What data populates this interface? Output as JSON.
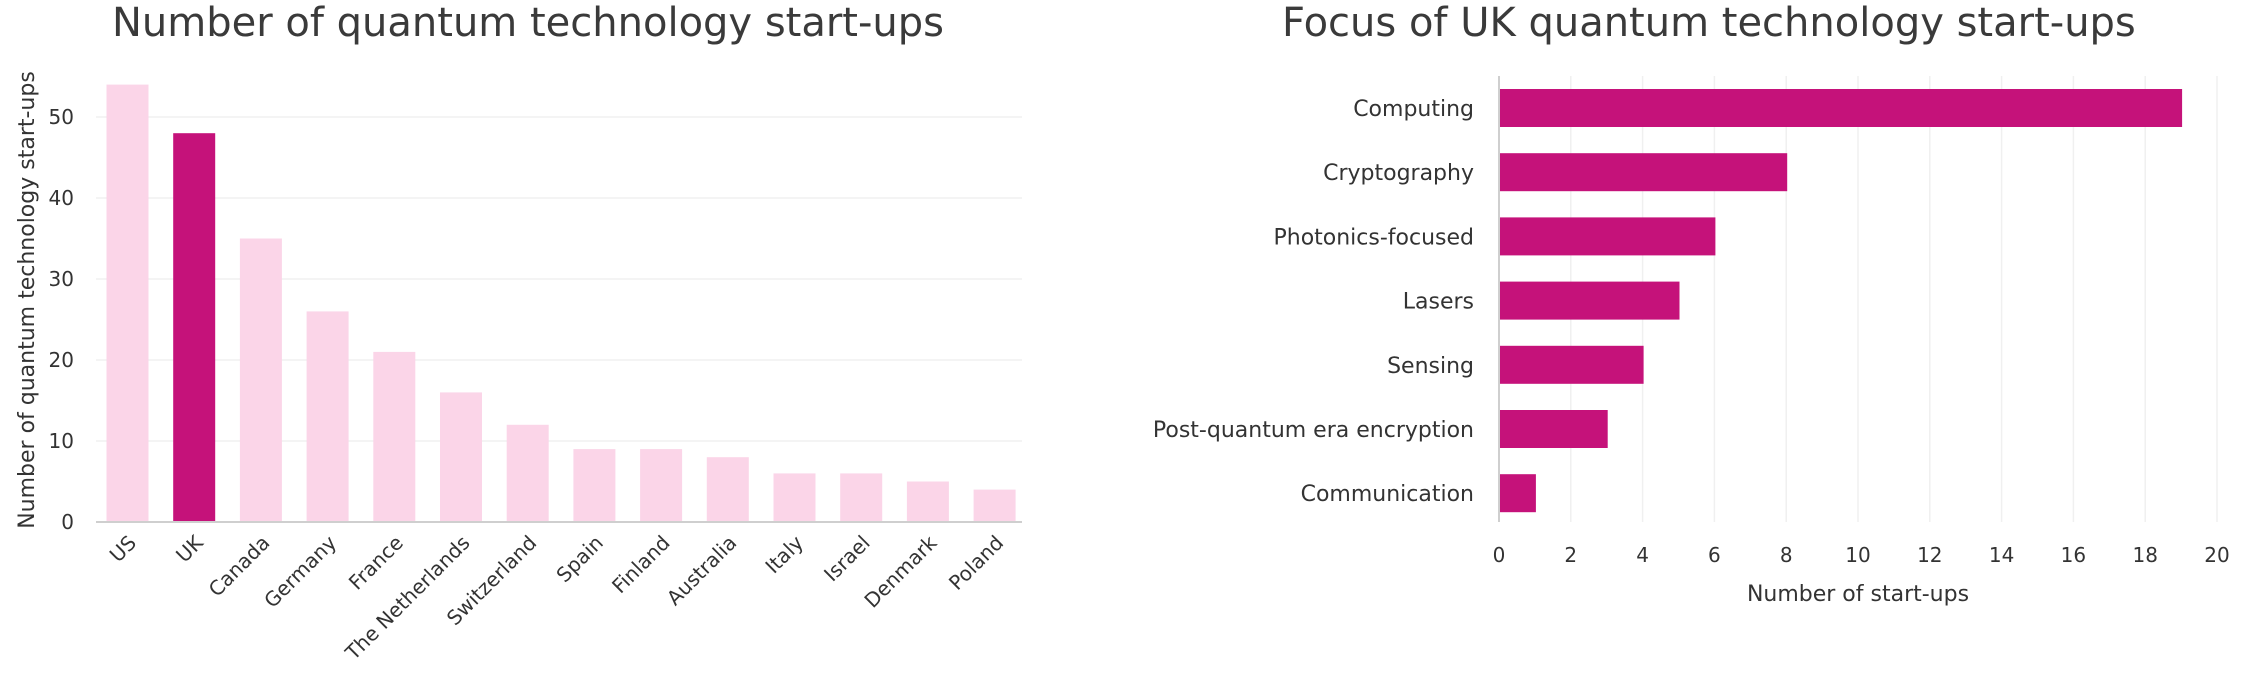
{
  "chart_data": [
    {
      "type": "bar",
      "title": "Number of quantum technology start-ups",
      "xlabel": "",
      "ylabel": "Number of quantum technology start-ups",
      "categories": [
        "US",
        "UK",
        "Canada",
        "Germany",
        "France",
        "The Netherlands",
        "Switzerland",
        "Spain",
        "Finland",
        "Australia",
        "Italy",
        "Israel",
        "Denmark",
        "Poland"
      ],
      "values": [
        54,
        48,
        35,
        26,
        21,
        16,
        12,
        9,
        9,
        8,
        6,
        6,
        5,
        4
      ],
      "highlight": "UK",
      "ylim": [
        0,
        55
      ],
      "yticks": [
        0,
        10,
        20,
        30,
        40,
        50
      ],
      "grid": true,
      "colors": {
        "highlight": "#c5127a",
        "base": "#fbd5e8"
      }
    },
    {
      "type": "bar",
      "orientation": "horizontal",
      "title": "Focus of UK quantum technology start-ups",
      "xlabel": "Number of start-ups",
      "ylabel": "",
      "categories": [
        "Computing",
        "Cryptography",
        "Photonics-focused",
        "Lasers",
        "Sensing",
        "Post-quantum era encryption",
        "Communication"
      ],
      "values": [
        19,
        8,
        6,
        5,
        4,
        3,
        1
      ],
      "xlim": [
        0,
        20
      ],
      "xticks": [
        0,
        2,
        4,
        6,
        8,
        10,
        12,
        14,
        16,
        18,
        20
      ],
      "grid": true,
      "colors": {
        "bar": "#c5127a"
      }
    }
  ]
}
